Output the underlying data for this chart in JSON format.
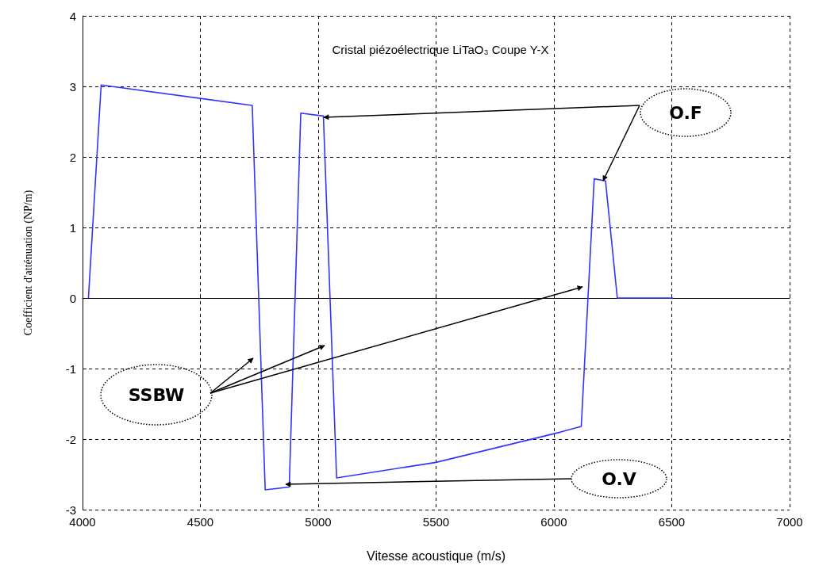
{
  "chart_data": {
    "type": "line",
    "title": "Cristal piézoélectrique LiTaO₃ Coupe Y-X",
    "xlabel": "Vitesse acoustique (m/s)",
    "ylabel": "Coefficient d'atténuation (NP/m)",
    "series": [
      {
        "color": "#3333ff",
        "x": [
          4025,
          4079,
          4720,
          4775,
          4877,
          4926,
          5022,
          5078,
          5500,
          6029,
          6116,
          6171,
          6219,
          6269,
          6506
        ],
        "values": [
          0,
          3.02,
          2.73,
          -2.72,
          -2.68,
          2.62,
          2.58,
          -2.55,
          -2.33,
          -1.9,
          -1.82,
          1.69,
          1.66,
          0,
          0
        ]
      }
    ],
    "xlim": [
      4000,
      7000
    ],
    "xticks": [
      4000,
      4500,
      5000,
      5500,
      6000,
      6500,
      7000
    ],
    "ylim": [
      -3,
      4
    ],
    "yticks": [
      -3,
      -2,
      -1,
      0,
      1,
      2,
      3,
      4
    ],
    "grid": true,
    "marker": "none",
    "line_style": "solid",
    "annotations": [
      "SSBW",
      "O.F",
      "O.V"
    ]
  }
}
